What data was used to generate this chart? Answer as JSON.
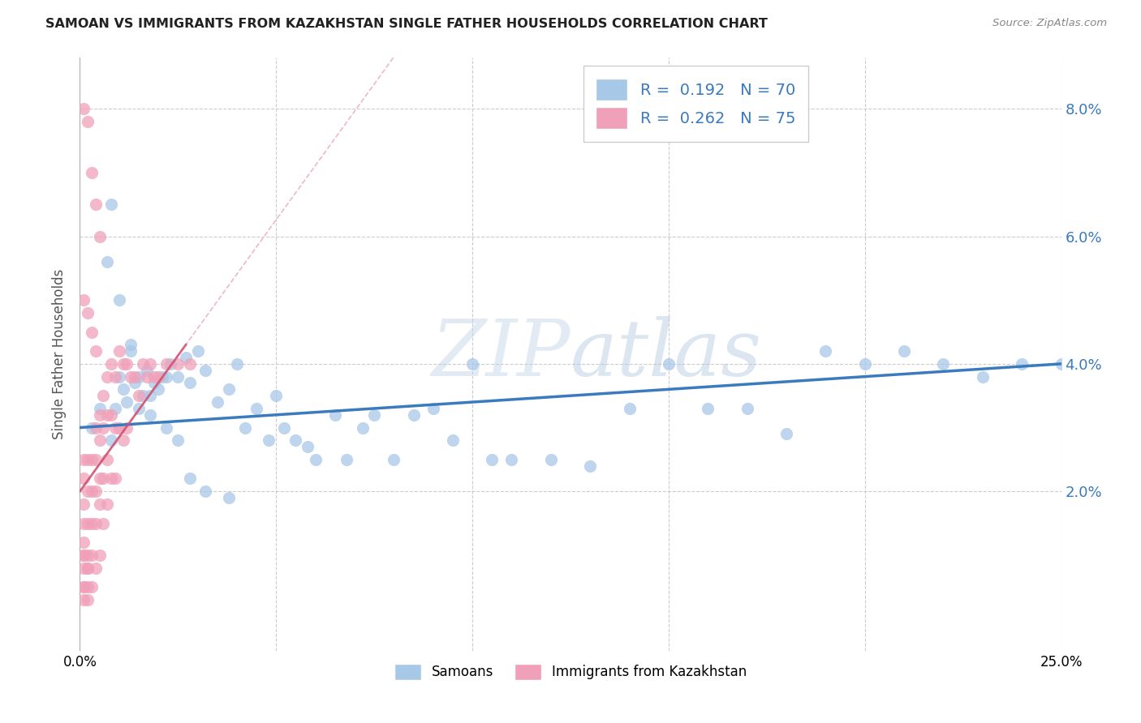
{
  "title": "SAMOAN VS IMMIGRANTS FROM KAZAKHSTAN SINGLE FATHER HOUSEHOLDS CORRELATION CHART",
  "source": "Source: ZipAtlas.com",
  "ylabel": "Single Father Households",
  "yticks": [
    "2.0%",
    "4.0%",
    "6.0%",
    "8.0%"
  ],
  "ytick_vals": [
    0.02,
    0.04,
    0.06,
    0.08
  ],
  "xlim": [
    0.0,
    0.25
  ],
  "ylim": [
    -0.005,
    0.088
  ],
  "watermark": "ZIPatlas",
  "blue_color": "#a8c8e8",
  "pink_color": "#f0a0b8",
  "trend_blue": "#3a7abf",
  "trend_pink": "#d05070",
  "blue_scatter_x": [
    0.003,
    0.005,
    0.007,
    0.008,
    0.009,
    0.01,
    0.011,
    0.012,
    0.013,
    0.014,
    0.015,
    0.016,
    0.017,
    0.018,
    0.019,
    0.02,
    0.021,
    0.022,
    0.023,
    0.025,
    0.027,
    0.028,
    0.03,
    0.032,
    0.035,
    0.038,
    0.04,
    0.042,
    0.045,
    0.048,
    0.05,
    0.052,
    0.055,
    0.058,
    0.06,
    0.065,
    0.068,
    0.072,
    0.075,
    0.08,
    0.085,
    0.09,
    0.095,
    0.1,
    0.105,
    0.11,
    0.12,
    0.13,
    0.14,
    0.15,
    0.16,
    0.17,
    0.18,
    0.19,
    0.2,
    0.21,
    0.22,
    0.23,
    0.24,
    0.25,
    0.008,
    0.01,
    0.013,
    0.015,
    0.018,
    0.022,
    0.025,
    0.028,
    0.032,
    0.038
  ],
  "blue_scatter_y": [
    0.03,
    0.033,
    0.056,
    0.028,
    0.033,
    0.038,
    0.036,
    0.034,
    0.042,
    0.037,
    0.033,
    0.035,
    0.039,
    0.032,
    0.037,
    0.036,
    0.038,
    0.038,
    0.04,
    0.038,
    0.041,
    0.037,
    0.042,
    0.039,
    0.034,
    0.036,
    0.04,
    0.03,
    0.033,
    0.028,
    0.035,
    0.03,
    0.028,
    0.027,
    0.025,
    0.032,
    0.025,
    0.03,
    0.032,
    0.025,
    0.032,
    0.033,
    0.028,
    0.04,
    0.025,
    0.025,
    0.025,
    0.024,
    0.033,
    0.04,
    0.033,
    0.033,
    0.029,
    0.042,
    0.04,
    0.042,
    0.04,
    0.038,
    0.04,
    0.04,
    0.065,
    0.05,
    0.043,
    0.038,
    0.035,
    0.03,
    0.028,
    0.022,
    0.02,
    0.019
  ],
  "pink_scatter_x": [
    0.001,
    0.001,
    0.001,
    0.001,
    0.001,
    0.001,
    0.001,
    0.001,
    0.002,
    0.002,
    0.002,
    0.002,
    0.002,
    0.002,
    0.003,
    0.003,
    0.003,
    0.003,
    0.003,
    0.004,
    0.004,
    0.004,
    0.004,
    0.004,
    0.005,
    0.005,
    0.005,
    0.005,
    0.005,
    0.006,
    0.006,
    0.006,
    0.006,
    0.007,
    0.007,
    0.007,
    0.007,
    0.008,
    0.008,
    0.008,
    0.009,
    0.009,
    0.009,
    0.01,
    0.01,
    0.011,
    0.011,
    0.012,
    0.012,
    0.013,
    0.014,
    0.015,
    0.016,
    0.017,
    0.018,
    0.019,
    0.02,
    0.022,
    0.025,
    0.028,
    0.001,
    0.002,
    0.003,
    0.004,
    0.005,
    0.001,
    0.002,
    0.003,
    0.004,
    0.001,
    0.002,
    0.001,
    0.002,
    0.001
  ],
  "pink_scatter_y": [
    0.025,
    0.022,
    0.018,
    0.015,
    0.012,
    0.01,
    0.008,
    0.005,
    0.025,
    0.02,
    0.015,
    0.01,
    0.008,
    0.005,
    0.025,
    0.02,
    0.015,
    0.01,
    0.005,
    0.03,
    0.025,
    0.02,
    0.015,
    0.008,
    0.032,
    0.028,
    0.022,
    0.018,
    0.01,
    0.035,
    0.03,
    0.022,
    0.015,
    0.038,
    0.032,
    0.025,
    0.018,
    0.04,
    0.032,
    0.022,
    0.038,
    0.03,
    0.022,
    0.042,
    0.03,
    0.04,
    0.028,
    0.04,
    0.03,
    0.038,
    0.038,
    0.035,
    0.04,
    0.038,
    0.04,
    0.038,
    0.038,
    0.04,
    0.04,
    0.04,
    0.08,
    0.078,
    0.07,
    0.065,
    0.06,
    0.05,
    0.048,
    0.045,
    0.042,
    0.005,
    0.003,
    0.01,
    0.008,
    0.003
  ],
  "blue_trend_x": [
    0.0,
    0.25
  ],
  "blue_trend_y": [
    0.03,
    0.04
  ],
  "pink_trend_x": [
    0.0,
    0.027
  ],
  "pink_trend_y": [
    0.02,
    0.043
  ]
}
